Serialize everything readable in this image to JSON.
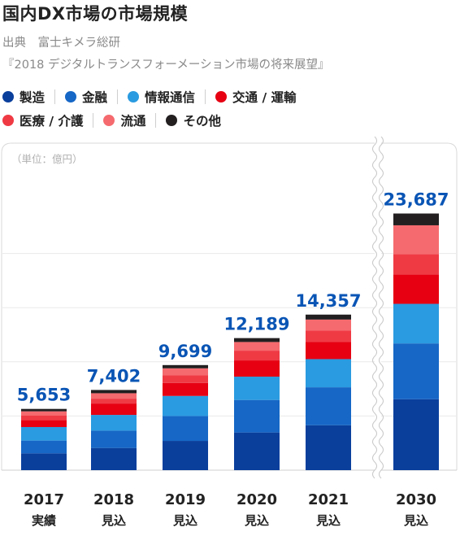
{
  "title": "国内DX市場の市場規模",
  "source": {
    "line1": "出典　富士キメラ総研",
    "line2": "『2018 デジタルトランスフォーメーション市場の将来展望』"
  },
  "legend": [
    {
      "label": "製造",
      "color": "#0a3f9c"
    },
    {
      "label": "金融",
      "color": "#1667c6"
    },
    {
      "label": "情報通信",
      "color": "#2a9be0"
    },
    {
      "label": "交通 / 運輸",
      "color": "#e60012"
    },
    {
      "label": "医療 / 介護",
      "color": "#ef3a44"
    },
    {
      "label": "流通",
      "color": "#f56a6e"
    },
    {
      "label": "その他",
      "color": "#231f20"
    }
  ],
  "chart_data": {
    "type": "bar",
    "stacked": true,
    "unit_label": "（単位：億円）",
    "categories": [
      "2017",
      "2018",
      "2019",
      "2020",
      "2021",
      "2030"
    ],
    "category_sublabels": [
      "実績",
      "見込",
      "見込",
      "見込",
      "見込",
      "見込"
    ],
    "totals": [
      5653,
      7402,
      9699,
      12189,
      14357,
      23687
    ],
    "total_labels": [
      "5,653",
      "7,402",
      "9,699",
      "12,189",
      "14,357",
      "23,687"
    ],
    "series": [
      {
        "name": "製造",
        "values": [
          1550,
          2050,
          2700,
          3480,
          4150,
          6550
        ]
      },
      {
        "name": "金融",
        "values": [
          1180,
          1600,
          2300,
          3000,
          3500,
          5150
        ]
      },
      {
        "name": "情報通信",
        "values": [
          1250,
          1450,
          1850,
          2150,
          2600,
          3650
        ]
      },
      {
        "name": "交通 / 運輸",
        "values": [
          650,
          1050,
          1200,
          1500,
          1600,
          2700
        ]
      },
      {
        "name": "医療 / 介護",
        "values": [
          400,
          450,
          700,
          900,
          1050,
          1900
        ]
      },
      {
        "name": "流通",
        "values": [
          400,
          500,
          650,
          800,
          1000,
          2650
        ]
      },
      {
        "name": "その他",
        "values": [
          223,
          302,
          299,
          359,
          457,
          1087
        ]
      }
    ],
    "ylim": [
      0,
      25000
    ],
    "grid": true,
    "axis_break_before": "2030"
  }
}
